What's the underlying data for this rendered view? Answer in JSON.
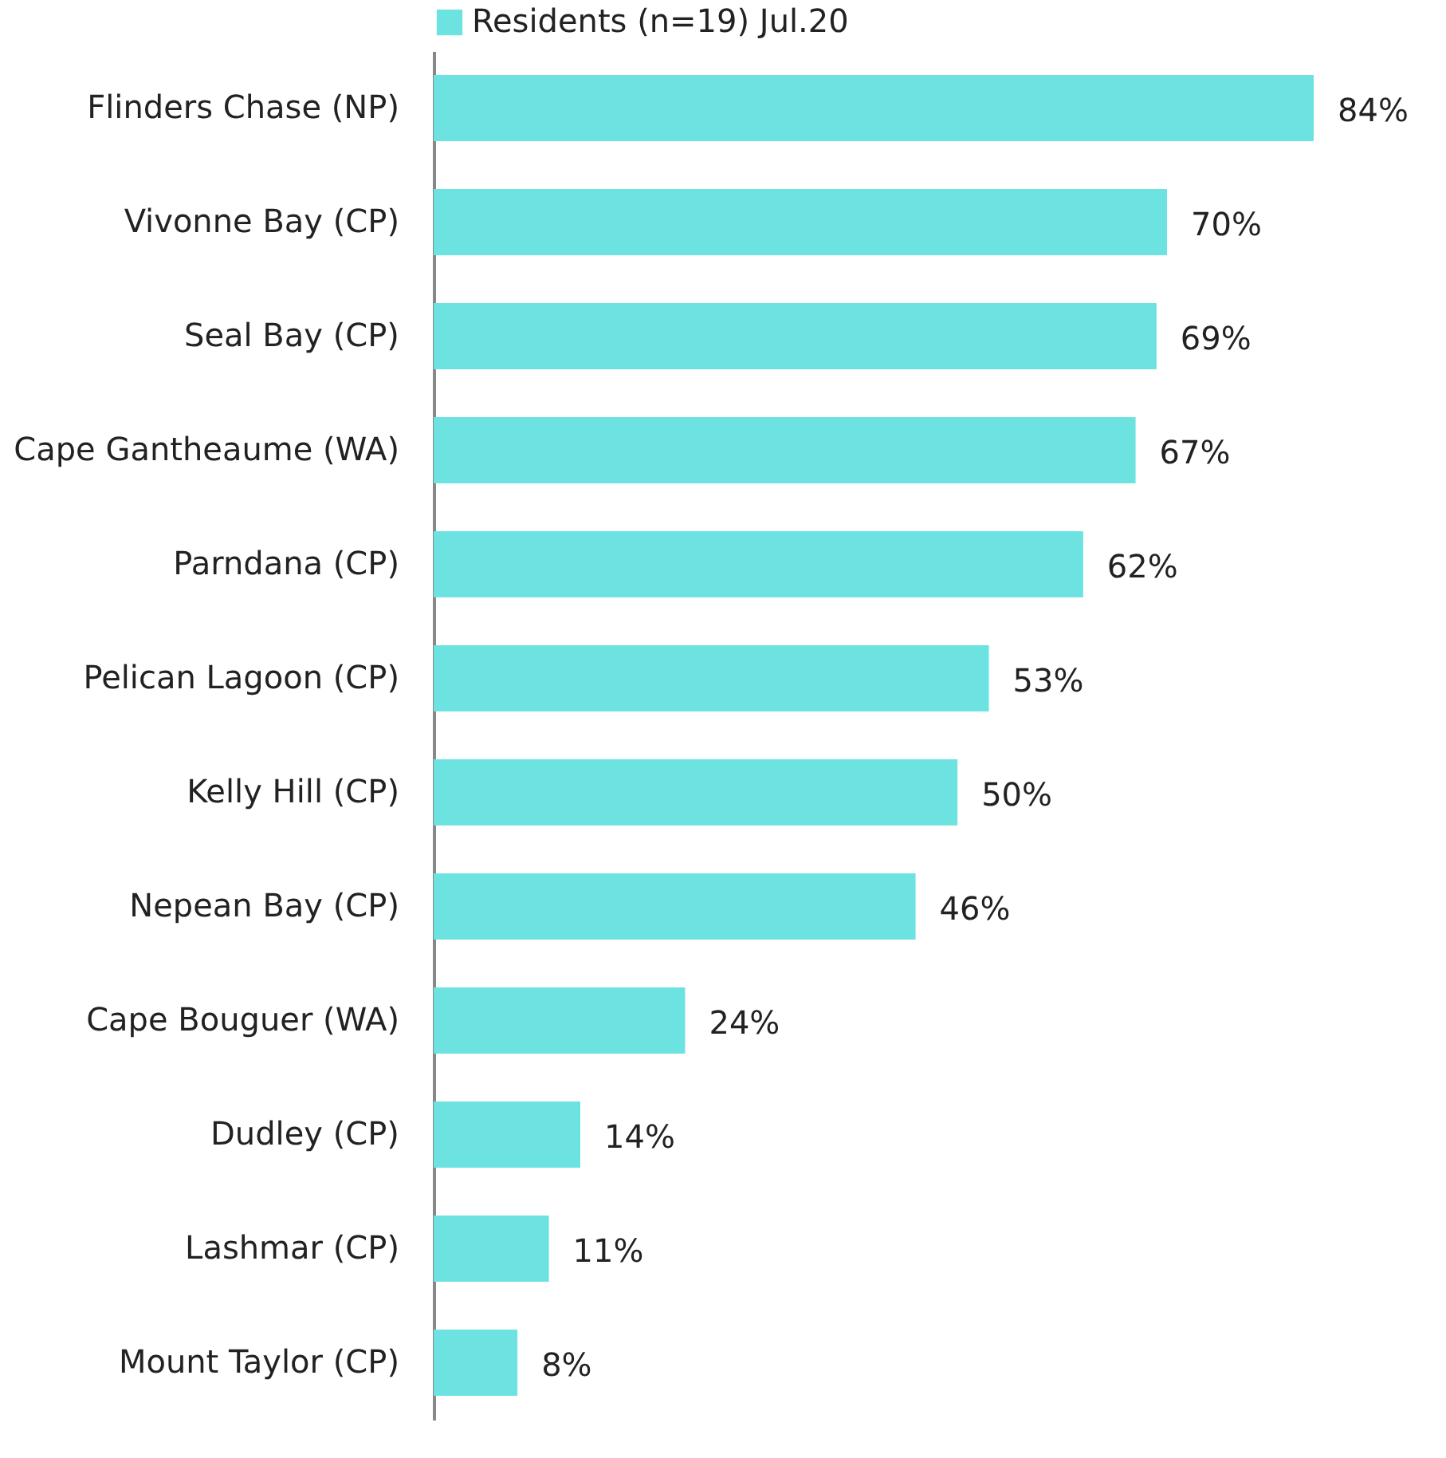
{
  "chart_data": {
    "type": "bar",
    "orientation": "horizontal",
    "legend": "top",
    "categories": [
      "Flinders Chase (NP)",
      "Vivonne Bay (CP)",
      "Seal Bay (CP)",
      "Cape Gantheaume (WA)",
      "Parndana (CP)",
      "Pelican Lagoon (CP)",
      "Kelly Hill (CP)",
      "Nepean Bay (CP)",
      "Cape Bouguer (WA)",
      "Dudley (CP)",
      "Lashmar (CP)",
      "Mount Taylor (CP)"
    ],
    "series": [
      {
        "name": "Residents (n=19) Jul.20",
        "color": "#6ce3e0",
        "values": [
          84,
          70,
          69,
          67,
          62,
          53,
          50,
          46,
          24,
          14,
          11,
          8
        ],
        "value_labels": [
          "84%",
          "70%",
          "69%",
          "67%",
          "62%",
          "53%",
          "50%",
          "46%",
          "24%",
          "14%",
          "11%",
          "8%"
        ]
      }
    ]
  }
}
